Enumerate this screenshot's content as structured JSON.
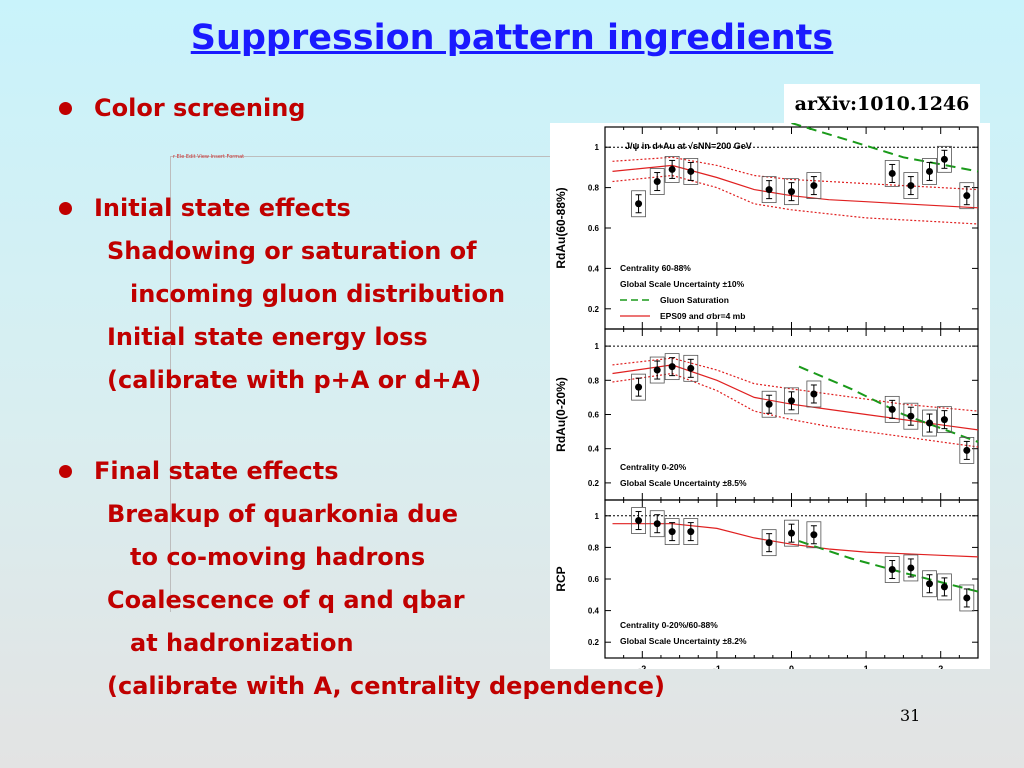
{
  "slide": {
    "title": "Suppression pattern ingredients",
    "page_number": "31",
    "arxiv_label": "arXiv:1010.1246",
    "ghost_text": "r Ele Edit View Insert Format",
    "bullets": [
      {
        "heading": "Color screening",
        "sub": []
      },
      {
        "heading": "Initial state effects",
        "sub": [
          "Shadowing or saturation of",
          "incoming gluon distribution",
          "Initial state energy loss",
          "(calibrate with p+A or d+A)"
        ]
      },
      {
        "heading": "Final state effects",
        "sub": [
          "Breakup of quarkonia due",
          "to co-moving hadrons",
          "Coalescence of q and qbar",
          "at hadronization",
          "(calibrate with A, centrality dependence)"
        ]
      }
    ]
  },
  "chart_data": [
    {
      "type": "scatter",
      "title": "J/ψ in d+Au at √sNN=200 GeV",
      "ylabel": "RdAu(60-88%)",
      "ylim": [
        0.1,
        1.1
      ],
      "xlim": [
        -2.5,
        2.5
      ],
      "yticks": [
        "1",
        "0.8",
        "0.6",
        "0.4",
        "0.2"
      ],
      "annotations": [
        "Centrality 60-88%",
        "Global Scale Uncertainty ±10%"
      ],
      "legend": [
        "Gluon Saturation",
        "EPS09 and σbr=4 mb"
      ],
      "points": [
        {
          "x": -2.05,
          "y": 0.72
        },
        {
          "x": -1.8,
          "y": 0.83
        },
        {
          "x": -1.6,
          "y": 0.89
        },
        {
          "x": -1.35,
          "y": 0.88
        },
        {
          "x": -0.3,
          "y": 0.79
        },
        {
          "x": 0.0,
          "y": 0.78
        },
        {
          "x": 0.3,
          "y": 0.81
        },
        {
          "x": 1.35,
          "y": 0.87
        },
        {
          "x": 1.6,
          "y": 0.81
        },
        {
          "x": 1.85,
          "y": 0.88
        },
        {
          "x": 2.05,
          "y": 0.94
        },
        {
          "x": 2.35,
          "y": 0.76
        }
      ],
      "eps09_center": [
        [
          -2.4,
          0.88
        ],
        [
          -1.6,
          0.91
        ],
        [
          -1.0,
          0.85
        ],
        [
          -0.5,
          0.79
        ],
        [
          0,
          0.76
        ],
        [
          0.5,
          0.74
        ],
        [
          1,
          0.73
        ],
        [
          1.5,
          0.72
        ],
        [
          2,
          0.71
        ],
        [
          2.5,
          0.7
        ]
      ],
      "eps09_upper": [
        [
          -2.4,
          0.93
        ],
        [
          -1.6,
          0.95
        ],
        [
          -1.0,
          0.91
        ],
        [
          -0.5,
          0.86
        ],
        [
          0,
          0.84
        ],
        [
          0.5,
          0.83
        ],
        [
          1,
          0.82
        ],
        [
          1.5,
          0.81
        ],
        [
          2,
          0.8
        ],
        [
          2.5,
          0.79
        ]
      ],
      "eps09_lower": [
        [
          -2.4,
          0.83
        ],
        [
          -1.6,
          0.86
        ],
        [
          -1.0,
          0.8
        ],
        [
          -0.5,
          0.72
        ],
        [
          0,
          0.69
        ],
        [
          0.5,
          0.67
        ],
        [
          1,
          0.65
        ],
        [
          1.5,
          0.64
        ],
        [
          2,
          0.63
        ],
        [
          2.5,
          0.62
        ]
      ],
      "saturation": [
        [
          0,
          1.12
        ],
        [
          0.8,
          1.03
        ],
        [
          1.5,
          0.95
        ],
        [
          2.5,
          0.88
        ]
      ]
    },
    {
      "type": "scatter",
      "ylabel": "RdAu(0-20%)",
      "ylim": [
        0.1,
        1.1
      ],
      "xlim": [
        -2.5,
        2.5
      ],
      "yticks": [
        "1",
        "0.8",
        "0.6",
        "0.4",
        "0.2"
      ],
      "annotations": [
        "Centrality 0-20%",
        "Global Scale Uncertainty ±8.5%"
      ],
      "points": [
        {
          "x": -2.05,
          "y": 0.76
        },
        {
          "x": -1.8,
          "y": 0.86
        },
        {
          "x": -1.6,
          "y": 0.88
        },
        {
          "x": -1.35,
          "y": 0.87
        },
        {
          "x": -0.3,
          "y": 0.66
        },
        {
          "x": 0.0,
          "y": 0.68
        },
        {
          "x": 0.3,
          "y": 0.72
        },
        {
          "x": 1.35,
          "y": 0.63
        },
        {
          "x": 1.6,
          "y": 0.59
        },
        {
          "x": 1.85,
          "y": 0.55
        },
        {
          "x": 2.05,
          "y": 0.57
        },
        {
          "x": 2.35,
          "y": 0.39
        }
      ],
      "eps09_center": [
        [
          -2.4,
          0.84
        ],
        [
          -1.6,
          0.89
        ],
        [
          -1.0,
          0.8
        ],
        [
          -0.5,
          0.7
        ],
        [
          0,
          0.66
        ],
        [
          0.5,
          0.63
        ],
        [
          1,
          0.6
        ],
        [
          1.5,
          0.57
        ],
        [
          2,
          0.54
        ],
        [
          2.5,
          0.51
        ]
      ],
      "eps09_upper": [
        [
          -2.4,
          0.89
        ],
        [
          -1.6,
          0.93
        ],
        [
          -1.0,
          0.86
        ],
        [
          -0.5,
          0.78
        ],
        [
          0,
          0.75
        ],
        [
          0.5,
          0.72
        ],
        [
          1,
          0.69
        ],
        [
          1.5,
          0.66
        ],
        [
          2,
          0.64
        ],
        [
          2.5,
          0.62
        ]
      ],
      "eps09_lower": [
        [
          -2.4,
          0.79
        ],
        [
          -1.6,
          0.84
        ],
        [
          -1.0,
          0.74
        ],
        [
          -0.5,
          0.62
        ],
        [
          0,
          0.57
        ],
        [
          0.5,
          0.53
        ],
        [
          1,
          0.5
        ],
        [
          1.5,
          0.47
        ],
        [
          2,
          0.44
        ],
        [
          2.5,
          0.41
        ]
      ],
      "saturation": [
        [
          0.1,
          0.88
        ],
        [
          0.8,
          0.75
        ],
        [
          1.5,
          0.6
        ],
        [
          2.5,
          0.44
        ]
      ]
    },
    {
      "type": "scatter",
      "ylabel": "RCP",
      "xlabel": "y",
      "ylim": [
        0.1,
        1.1
      ],
      "xlim": [
        -2.5,
        2.5
      ],
      "yticks": [
        "1",
        "0.8",
        "0.6",
        "0.4",
        "0.2"
      ],
      "xticks": [
        "-2",
        "-1",
        "0",
        "1",
        "2"
      ],
      "annotations": [
        "Centrality 0-20%/60-88%",
        "Global Scale Uncertainty ±8.2%"
      ],
      "points": [
        {
          "x": -2.05,
          "y": 0.97
        },
        {
          "x": -1.8,
          "y": 0.95
        },
        {
          "x": -1.6,
          "y": 0.9
        },
        {
          "x": -1.35,
          "y": 0.9
        },
        {
          "x": -0.3,
          "y": 0.83
        },
        {
          "x": 0.0,
          "y": 0.89
        },
        {
          "x": 0.3,
          "y": 0.88
        },
        {
          "x": 1.35,
          "y": 0.66
        },
        {
          "x": 1.6,
          "y": 0.67
        },
        {
          "x": 1.85,
          "y": 0.57
        },
        {
          "x": 2.05,
          "y": 0.55
        },
        {
          "x": 2.35,
          "y": 0.48
        }
      ],
      "eps09_center": [
        [
          -2.4,
          0.95
        ],
        [
          -1.6,
          0.95
        ],
        [
          -1.0,
          0.92
        ],
        [
          -0.5,
          0.86
        ],
        [
          0,
          0.82
        ],
        [
          0.5,
          0.79
        ],
        [
          1,
          0.77
        ],
        [
          1.5,
          0.76
        ],
        [
          2,
          0.75
        ],
        [
          2.5,
          0.74
        ]
      ],
      "saturation": [
        [
          0.1,
          0.84
        ],
        [
          0.8,
          0.73
        ],
        [
          1.5,
          0.64
        ],
        [
          2.5,
          0.52
        ]
      ]
    }
  ]
}
